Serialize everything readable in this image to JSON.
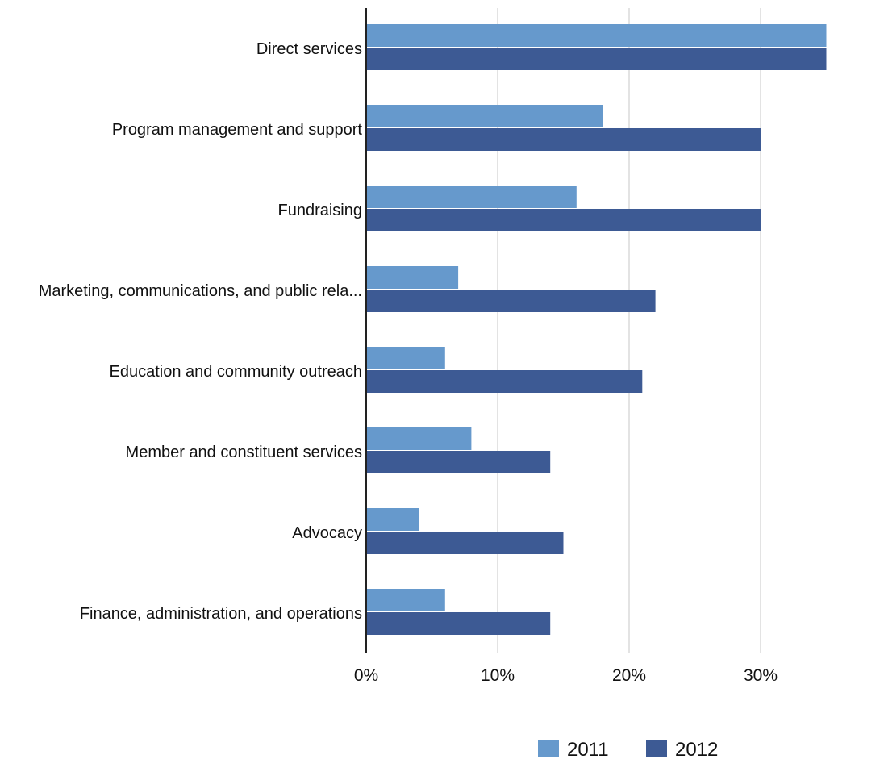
{
  "chart_data": {
    "type": "bar",
    "orientation": "horizontal",
    "title": "",
    "xlabel": "",
    "ylabel": "",
    "categories": [
      "Direct services",
      "Program management and support",
      "Fundraising",
      "Marketing, communications, and public rela...",
      "Education and community outreach",
      "Member and constituent services",
      "Advocacy",
      "Finance, administration, and operations"
    ],
    "series": [
      {
        "name": "2011",
        "color": "#6699cc",
        "values": [
          35,
          18,
          16,
          7,
          6,
          8,
          4,
          6
        ]
      },
      {
        "name": "2012",
        "color": "#3d5a94",
        "values": [
          35,
          30,
          30,
          22,
          21,
          14,
          15,
          14
        ]
      }
    ],
    "xlim": [
      0,
      35
    ],
    "xticks": [
      0,
      10,
      20,
      30
    ],
    "tick_labels": [
      "0%",
      "10%",
      "20%",
      "30%"
    ],
    "grid": true,
    "legend_position": "bottom-right"
  }
}
